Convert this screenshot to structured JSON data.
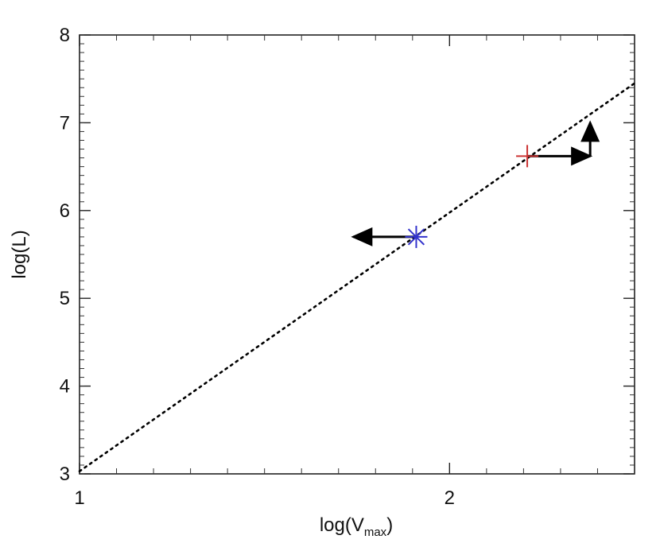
{
  "chart_data": {
    "type": "scatter",
    "xlabel": {
      "base": "log(V",
      "sub": "max",
      "close": ")"
    },
    "ylabel": "log(L)",
    "xlim": [
      1,
      2.5
    ],
    "ylim": [
      3,
      8
    ],
    "x_ticks": [
      {
        "value": 1,
        "label": "1"
      },
      {
        "value": 2,
        "label": "2"
      }
    ],
    "y_ticks": [
      {
        "value": 3,
        "label": "3"
      },
      {
        "value": 4,
        "label": "4"
      },
      {
        "value": 5,
        "label": "5"
      },
      {
        "value": 6,
        "label": "6"
      },
      {
        "value": 7,
        "label": "7"
      },
      {
        "value": 8,
        "label": "8"
      }
    ],
    "fit_line": {
      "x": [
        1,
        2.5
      ],
      "y": [
        3.03,
        7.45
      ],
      "style": "dotted",
      "color": "#000000"
    },
    "points": [
      {
        "x": 1.91,
        "y": 5.7,
        "marker": "asterisk",
        "color": "#3333cc",
        "arrow": {
          "dx": -0.17,
          "dy": 0
        }
      },
      {
        "x": 2.21,
        "y": 6.62,
        "marker": "plus",
        "color": "#cc3333",
        "arrow": {
          "dx": 0.17,
          "dy": 0
        }
      },
      {
        "x": 2.38,
        "y": 6.62,
        "marker": "none",
        "color": "#000000",
        "arrow": {
          "dx": 0,
          "dy": 0.38
        }
      }
    ],
    "grid": false,
    "legend": "none"
  }
}
